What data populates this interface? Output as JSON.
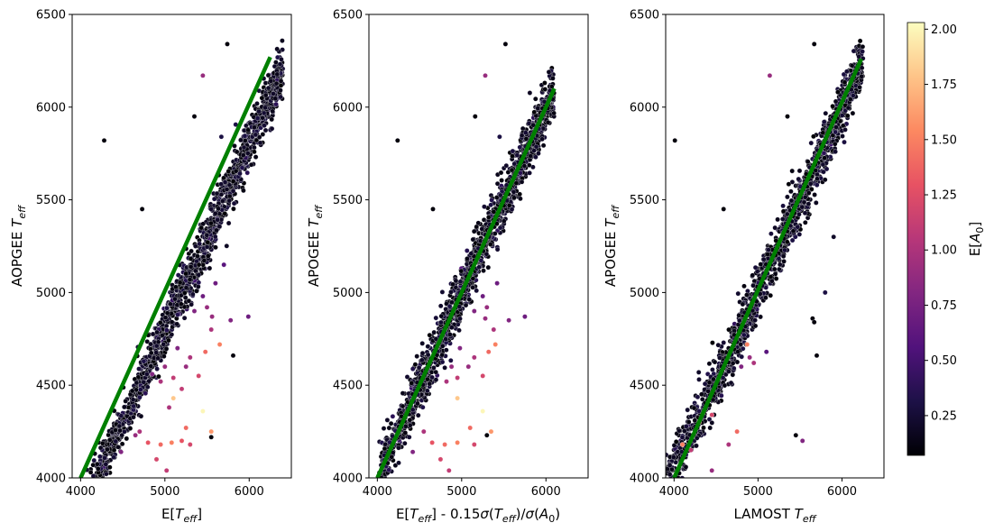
{
  "chart_data": [
    {
      "type": "scatter",
      "panel": "left",
      "xlabel": "E[T_eff]",
      "ylabel": "AOPGEE T_eff",
      "xlim": [
        3900,
        6500
      ],
      "ylim": [
        4000,
        6500
      ],
      "xticks": [
        4000,
        5000,
        6000
      ],
      "yticks": [
        4000,
        4500,
        5000,
        5500,
        6000,
        6500
      ],
      "main_trend": {
        "x_start": 4000,
        "x_end": 6400,
        "offset": -200,
        "slope": 1.0,
        "n_points": 1500
      },
      "reference_line": {
        "x": [
          4000,
          6250
        ],
        "y": [
          4000,
          6270
        ],
        "color": "#008000"
      },
      "outliers": [
        {
          "x": 4280,
          "y": 5820,
          "c": 0.1
        },
        {
          "x": 5350,
          "y": 5950,
          "c": 0.1
        },
        {
          "x": 4730,
          "y": 5450,
          "c": 0.1
        },
        {
          "x": 5740,
          "y": 6340,
          "c": 0.1
        },
        {
          "x": 5450,
          "y": 6170,
          "c": 0.9
        },
        {
          "x": 5670,
          "y": 5840,
          "c": 0.3
        },
        {
          "x": 5560,
          "y": 4870,
          "c": 0.9
        },
        {
          "x": 5780,
          "y": 4850,
          "c": 0.8
        },
        {
          "x": 5990,
          "y": 4870,
          "c": 0.7
        },
        {
          "x": 5810,
          "y": 4660,
          "c": 0.1
        },
        {
          "x": 5650,
          "y": 4720,
          "c": 1.5
        },
        {
          "x": 5550,
          "y": 4220,
          "c": 0.1
        },
        {
          "x": 4120,
          "y": 4030,
          "c": 0.1
        },
        {
          "x": 5450,
          "y": 4360,
          "c": 2.0
        },
        {
          "x": 5100,
          "y": 4430,
          "c": 1.8
        },
        {
          "x": 4950,
          "y": 4180,
          "c": 1.4
        },
        {
          "x": 4800,
          "y": 4190,
          "c": 1.3
        },
        {
          "x": 4900,
          "y": 4100,
          "c": 1.2
        },
        {
          "x": 5020,
          "y": 4040,
          "c": 1.1
        },
        {
          "x": 5250,
          "y": 4270,
          "c": 1.4
        },
        {
          "x": 5550,
          "y": 4250,
          "c": 1.6
        },
        {
          "x": 4700,
          "y": 4250,
          "c": 1.0
        },
        {
          "x": 4650,
          "y": 4230,
          "c": 0.9
        },
        {
          "x": 5300,
          "y": 4180,
          "c": 1.2
        },
        {
          "x": 5080,
          "y": 4190,
          "c": 1.5
        },
        {
          "x": 5200,
          "y": 4200,
          "c": 1.3
        },
        {
          "x": 4480,
          "y": 4140,
          "c": 0.8
        },
        {
          "x": 5400,
          "y": 4550,
          "c": 1.2
        },
        {
          "x": 5480,
          "y": 4680,
          "c": 1.4
        },
        {
          "x": 5300,
          "y": 4650,
          "c": 1.0
        },
        {
          "x": 5250,
          "y": 4600,
          "c": 0.9
        },
        {
          "x": 5150,
          "y": 4700,
          "c": 0.8
        },
        {
          "x": 5000,
          "y": 4600,
          "c": 0.9
        },
        {
          "x": 4950,
          "y": 4520,
          "c": 1.0
        },
        {
          "x": 5100,
          "y": 4540,
          "c": 1.1
        },
        {
          "x": 4850,
          "y": 4560,
          "c": 0.8
        },
        {
          "x": 5550,
          "y": 4800,
          "c": 1.0
        },
        {
          "x": 5500,
          "y": 4920,
          "c": 0.9
        },
        {
          "x": 5450,
          "y": 4980,
          "c": 0.7
        },
        {
          "x": 5350,
          "y": 4900,
          "c": 0.8
        },
        {
          "x": 5600,
          "y": 5050,
          "c": 0.7
        },
        {
          "x": 5700,
          "y": 5150,
          "c": 0.6
        },
        {
          "x": 5200,
          "y": 4480,
          "c": 1.1
        },
        {
          "x": 5050,
          "y": 4380,
          "c": 1.0
        }
      ]
    },
    {
      "type": "scatter",
      "panel": "middle",
      "xlabel": "E[T_eff] - 0.15σ(T_eff)/σ(A_0)",
      "ylabel": "APOGEE T_eff",
      "xlim": [
        3900,
        6500
      ],
      "ylim": [
        4000,
        6500
      ],
      "xticks": [
        4000,
        5000,
        6000
      ],
      "yticks": [
        4000,
        4500,
        5000,
        5500,
        6000,
        6500
      ],
      "main_trend": {
        "x_start": 4000,
        "x_end": 6100,
        "offset": 0,
        "slope": 1.0,
        "n_points": 1500
      },
      "reference_line": {
        "x": [
          4000,
          6100
        ],
        "y": [
          4000,
          6100
        ],
        "color": "#008000"
      },
      "outliers": [
        {
          "x": 4240,
          "y": 5820,
          "c": 0.1
        },
        {
          "x": 5160,
          "y": 5950,
          "c": 0.1
        },
        {
          "x": 4660,
          "y": 5450,
          "c": 0.1
        },
        {
          "x": 5520,
          "y": 6340,
          "c": 0.1
        },
        {
          "x": 5280,
          "y": 6170,
          "c": 0.9
        },
        {
          "x": 5450,
          "y": 5840,
          "c": 0.3
        },
        {
          "x": 5280,
          "y": 4860,
          "c": 0.9
        },
        {
          "x": 5560,
          "y": 4850,
          "c": 0.8
        },
        {
          "x": 5750,
          "y": 4870,
          "c": 0.7
        },
        {
          "x": 5300,
          "y": 4230,
          "c": 0.1
        },
        {
          "x": 5400,
          "y": 4720,
          "c": 1.5
        },
        {
          "x": 5250,
          "y": 4360,
          "c": 2.0
        },
        {
          "x": 4950,
          "y": 4430,
          "c": 1.8
        },
        {
          "x": 4800,
          "y": 4180,
          "c": 1.4
        },
        {
          "x": 4650,
          "y": 4190,
          "c": 1.3
        },
        {
          "x": 4750,
          "y": 4100,
          "c": 1.2
        },
        {
          "x": 4850,
          "y": 4040,
          "c": 1.1
        },
        {
          "x": 5100,
          "y": 4270,
          "c": 1.4
        },
        {
          "x": 5350,
          "y": 4250,
          "c": 1.6
        },
        {
          "x": 4550,
          "y": 4250,
          "c": 1.0
        },
        {
          "x": 5150,
          "y": 4180,
          "c": 1.2
        },
        {
          "x": 4950,
          "y": 4190,
          "c": 1.5
        },
        {
          "x": 4420,
          "y": 4140,
          "c": 0.8
        },
        {
          "x": 5250,
          "y": 4550,
          "c": 1.2
        },
        {
          "x": 5320,
          "y": 4680,
          "c": 1.4
        },
        {
          "x": 5150,
          "y": 4650,
          "c": 1.0
        },
        {
          "x": 5080,
          "y": 4600,
          "c": 0.9
        },
        {
          "x": 4980,
          "y": 4700,
          "c": 0.8
        },
        {
          "x": 4880,
          "y": 4600,
          "c": 0.9
        },
        {
          "x": 4820,
          "y": 4520,
          "c": 1.0
        },
        {
          "x": 4950,
          "y": 4540,
          "c": 1.1
        },
        {
          "x": 5380,
          "y": 4800,
          "c": 1.0
        },
        {
          "x": 5300,
          "y": 4920,
          "c": 0.9
        },
        {
          "x": 5250,
          "y": 4980,
          "c": 0.7
        },
        {
          "x": 5150,
          "y": 4900,
          "c": 0.8
        },
        {
          "x": 5420,
          "y": 5050,
          "c": 0.7
        }
      ]
    },
    {
      "type": "scatter",
      "panel": "right",
      "xlabel": "LAMOST T_eff",
      "ylabel": "APOGEE T_eff",
      "xlim": [
        3900,
        6500
      ],
      "ylim": [
        4000,
        6500
      ],
      "xticks": [
        4000,
        5000,
        6000
      ],
      "yticks": [
        4000,
        4500,
        5000,
        5500,
        6000,
        6500
      ],
      "main_trend": {
        "x_start": 3900,
        "x_end": 6250,
        "offset": 0,
        "slope": 1.0,
        "n_points": 1500,
        "low_end_shift": 100
      },
      "reference_line": {
        "x": [
          4000,
          6230
        ],
        "y": [
          4000,
          6260
        ],
        "color": "#008000"
      },
      "outliers": [
        {
          "x": 4010,
          "y": 5820,
          "c": 0.1
        },
        {
          "x": 5350,
          "y": 5950,
          "c": 0.1
        },
        {
          "x": 4590,
          "y": 5450,
          "c": 0.1
        },
        {
          "x": 5670,
          "y": 6340,
          "c": 0.1
        },
        {
          "x": 5140,
          "y": 6170,
          "c": 0.9
        },
        {
          "x": 5650,
          "y": 4860,
          "c": 0.1
        },
        {
          "x": 5670,
          "y": 4840,
          "c": 0.1
        },
        {
          "x": 5700,
          "y": 4660,
          "c": 0.1
        },
        {
          "x": 5450,
          "y": 4230,
          "c": 0.1
        },
        {
          "x": 4870,
          "y": 4720,
          "c": 1.5
        },
        {
          "x": 4750,
          "y": 4250,
          "c": 1.4
        },
        {
          "x": 4300,
          "y": 4300,
          "c": 1.3
        },
        {
          "x": 4650,
          "y": 4180,
          "c": 1.0
        },
        {
          "x": 4450,
          "y": 4040,
          "c": 0.9
        },
        {
          "x": 5530,
          "y": 4200,
          "c": 0.8
        },
        {
          "x": 4450,
          "y": 4340,
          "c": 1.2
        },
        {
          "x": 4100,
          "y": 4180,
          "c": 1.5
        },
        {
          "x": 4200,
          "y": 4150,
          "c": 1.1
        },
        {
          "x": 4800,
          "y": 4600,
          "c": 0.8
        },
        {
          "x": 4900,
          "y": 4650,
          "c": 0.9
        },
        {
          "x": 5100,
          "y": 4680,
          "c": 0.6
        },
        {
          "x": 4950,
          "y": 4620,
          "c": 1.0
        },
        {
          "x": 5800,
          "y": 5000,
          "c": 0.3
        },
        {
          "x": 5900,
          "y": 5300,
          "c": 0.2
        }
      ]
    }
  ],
  "colorbar": {
    "label": "E[A_0]",
    "min": 0.07,
    "max": 2.03,
    "ticks": [
      0.25,
      0.5,
      0.75,
      1.0,
      1.25,
      1.5,
      1.75,
      2.0
    ],
    "tick_labels": [
      "0.25",
      "0.50",
      "0.75",
      "1.00",
      "1.25",
      "1.50",
      "1.75",
      "2.00"
    ],
    "colormap": [
      "#000004",
      "#1d1147",
      "#51127c",
      "#822681",
      "#b73779",
      "#e75263",
      "#fc8961",
      "#fec488",
      "#fcfdbf"
    ]
  }
}
